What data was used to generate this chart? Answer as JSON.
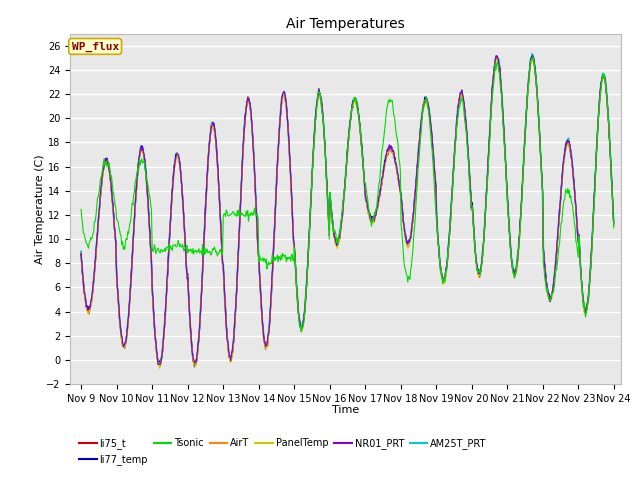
{
  "title": "Air Temperatures",
  "xlabel": "Time",
  "ylabel": "Air Temperature (C)",
  "ylim": [
    -2,
    27
  ],
  "yticks": [
    -2,
    0,
    2,
    4,
    6,
    8,
    10,
    12,
    14,
    16,
    18,
    20,
    22,
    24,
    26
  ],
  "x_tick_days": [
    9,
    10,
    11,
    12,
    13,
    14,
    15,
    16,
    17,
    18,
    19,
    20,
    21,
    22,
    23,
    24
  ],
  "series_order": [
    "li75_t",
    "li77_temp",
    "Tsonic",
    "AirT",
    "PanelTemp",
    "NR01_PRT",
    "AM25T_PRT"
  ],
  "series": {
    "li75_t": {
      "color": "#cc0000",
      "lw": 0.8
    },
    "li77_temp": {
      "color": "#0000cc",
      "lw": 0.8
    },
    "Tsonic": {
      "color": "#00dd00",
      "lw": 0.8
    },
    "AirT": {
      "color": "#ff8800",
      "lw": 0.8
    },
    "PanelTemp": {
      "color": "#cccc00",
      "lw": 0.8
    },
    "NR01_PRT": {
      "color": "#8800cc",
      "lw": 0.8
    },
    "AM25T_PRT": {
      "color": "#00cccc",
      "lw": 1.2
    }
  },
  "annotation": {
    "text": "WP_flux",
    "facecolor": "#ffffcc",
    "edgecolor": "#ccaa00",
    "textcolor": "#880000",
    "fontsize": 8
  },
  "plot_bg_color": "#e8e8e8",
  "grid_color": "#ffffff",
  "title_fontsize": 10,
  "tick_fontsize": 7,
  "axis_label_fontsize": 8
}
